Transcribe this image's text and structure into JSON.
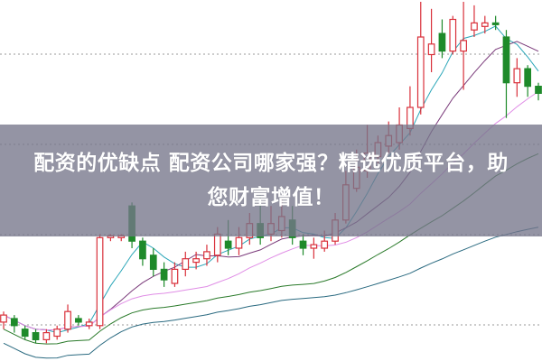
{
  "banner": {
    "line1": "配资的优缺点 配资公司哪家强？精选优质平台，助",
    "line2": "您财富增值！"
  },
  "chart_data": {
    "type": "candlestick",
    "title": "",
    "xlabel": "",
    "ylabel": "",
    "ylim": [
      0,
      100
    ],
    "grid": "dotted horizontal",
    "colors": {
      "up": "#d9303a",
      "down": "#1e8a2a",
      "ma": [
        "#2aa6b8",
        "#7a3a7a",
        "#e08ee6",
        "#2a7a2a",
        "#2a6a80"
      ]
    },
    "candles": [
      {
        "o": 9,
        "c": 11,
        "h": 12,
        "l": 7
      },
      {
        "o": 10,
        "c": 8,
        "h": 11,
        "l": 6
      },
      {
        "o": 7,
        "c": 5,
        "h": 8,
        "l": 4
      },
      {
        "o": 6,
        "c": 4,
        "h": 7,
        "l": 3
      },
      {
        "o": 4,
        "c": 6,
        "h": 7,
        "l": 3
      },
      {
        "o": 5,
        "c": 7,
        "h": 8,
        "l": 4
      },
      {
        "o": 7,
        "c": 12,
        "h": 14,
        "l": 6
      },
      {
        "o": 10,
        "c": 9,
        "h": 11,
        "l": 8
      },
      {
        "o": 8,
        "c": 9,
        "h": 10,
        "l": 7
      },
      {
        "o": 8,
        "c": 33,
        "h": 34,
        "l": 7
      },
      {
        "o": 33,
        "c": 33.5,
        "h": 34,
        "l": 32
      },
      {
        "o": 33,
        "c": 33.5,
        "h": 34,
        "l": 32
      },
      {
        "o": 42,
        "c": 32,
        "h": 43,
        "l": 30
      },
      {
        "o": 32,
        "c": 27,
        "h": 33,
        "l": 25
      },
      {
        "o": 28,
        "c": 24,
        "h": 30,
        "l": 22
      },
      {
        "o": 24,
        "c": 21,
        "h": 26,
        "l": 19
      },
      {
        "o": 20,
        "c": 24,
        "h": 26,
        "l": 19
      },
      {
        "o": 24,
        "c": 27,
        "h": 29,
        "l": 22
      },
      {
        "o": 26,
        "c": 27,
        "h": 29,
        "l": 24
      },
      {
        "o": 27,
        "c": 29,
        "h": 31,
        "l": 25
      },
      {
        "o": 28,
        "c": 34,
        "h": 36,
        "l": 26
      },
      {
        "o": 32,
        "c": 30,
        "h": 38,
        "l": 28
      },
      {
        "o": 30,
        "c": 33,
        "h": 36,
        "l": 28
      },
      {
        "o": 33,
        "c": 37,
        "h": 40,
        "l": 31
      },
      {
        "o": 37,
        "c": 33,
        "h": 45,
        "l": 31
      },
      {
        "o": 34,
        "c": 37,
        "h": 42,
        "l": 32
      },
      {
        "o": 35,
        "c": 39,
        "h": 44,
        "l": 33
      },
      {
        "o": 38,
        "c": 33,
        "h": 42,
        "l": 31
      },
      {
        "o": 32,
        "c": 30,
        "h": 34,
        "l": 28
      },
      {
        "o": 30,
        "c": 31,
        "h": 33,
        "l": 27
      },
      {
        "o": 30,
        "c": 32,
        "h": 35,
        "l": 29
      },
      {
        "o": 32,
        "c": 38,
        "h": 40,
        "l": 31
      },
      {
        "o": 38,
        "c": 48,
        "h": 52,
        "l": 37
      },
      {
        "o": 47,
        "c": 53,
        "h": 58,
        "l": 46
      },
      {
        "o": 52,
        "c": 57,
        "h": 65,
        "l": 50
      },
      {
        "o": 56,
        "c": 60,
        "h": 62,
        "l": 54
      },
      {
        "o": 59,
        "c": 62,
        "h": 66,
        "l": 57
      },
      {
        "o": 60,
        "c": 65,
        "h": 70,
        "l": 58
      },
      {
        "o": 64,
        "c": 70,
        "h": 76,
        "l": 62
      },
      {
        "o": 70,
        "c": 90,
        "h": 100,
        "l": 68
      },
      {
        "o": 85,
        "c": 88,
        "h": 98,
        "l": 80
      },
      {
        "o": 91,
        "c": 86,
        "h": 95,
        "l": 84
      },
      {
        "o": 86,
        "c": 95,
        "h": 96,
        "l": 85
      },
      {
        "o": 86,
        "c": 89,
        "h": 100,
        "l": 75
      },
      {
        "o": 92,
        "c": 94,
        "h": 99,
        "l": 90
      },
      {
        "o": 93,
        "c": 94,
        "h": 96,
        "l": 91
      },
      {
        "o": 94,
        "c": 93.5,
        "h": 96,
        "l": 92
      },
      {
        "o": 90,
        "c": 77,
        "h": 92,
        "l": 67
      },
      {
        "o": 77,
        "c": 81,
        "h": 84,
        "l": 73
      },
      {
        "o": 81,
        "c": 76,
        "h": 82,
        "l": 73
      },
      {
        "o": 76,
        "c": 74,
        "h": 77,
        "l": 72
      }
    ]
  }
}
